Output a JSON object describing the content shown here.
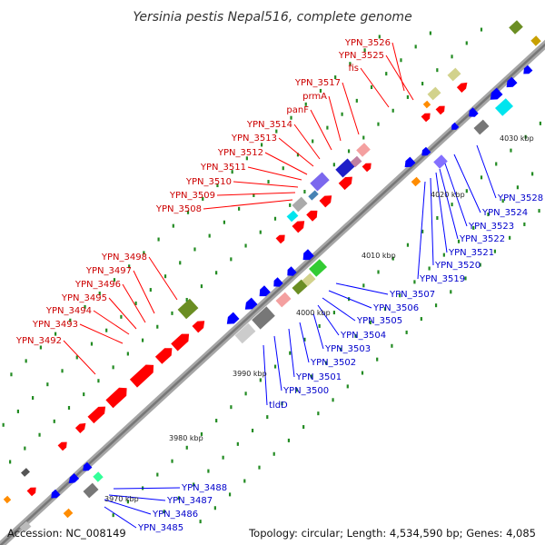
{
  "title": "Yersinia pestis Nepal516, complete genome",
  "footer": {
    "accession": "Accession: NC_008149",
    "summary": "Topology: circular; Length: 4,534,590 bp; Genes: 4,085"
  },
  "colors": {
    "forward": "#ff0000",
    "reverse": "#0000ff",
    "backbone": "#888888",
    "ticks": "#228b22",
    "leader_forward": "#ff0000",
    "leader_reverse": "#0000ff"
  },
  "tick_labels": [
    "3970 kbp",
    "3980 kbp",
    "3990 kbp",
    "4000 kbp",
    "4010 kbp",
    "4020 kbp",
    "4030 kbp"
  ],
  "forward_labels": [
    "YPN_3526",
    "YPN_3525",
    "fis",
    "YPN_3517",
    "prmA",
    "panF",
    "YPN_3514",
    "YPN_3513",
    "YPN_3512",
    "YPN_3511",
    "YPN_3510",
    "YPN_3509",
    "YPN_3508",
    "YPN_3498",
    "YPN_3497",
    "YPN_3496",
    "YPN_3495",
    "YPN_3494",
    "YPN_3493",
    "YPN_3492"
  ],
  "reverse_labels": [
    "YPN_3528",
    "YPN_3524",
    "YPN_3523",
    "YPN_3522",
    "YPN_3521",
    "YPN_3520",
    "YPN_3519",
    "YPN_3507",
    "YPN_3506",
    "YPN_3505",
    "YPN_3504",
    "YPN_3503",
    "YPN_3502",
    "YPN_3501",
    "YPN_3500",
    "tldD",
    "YPN_3488",
    "YPN_3487",
    "YPN_3486",
    "YPN_3485"
  ]
}
